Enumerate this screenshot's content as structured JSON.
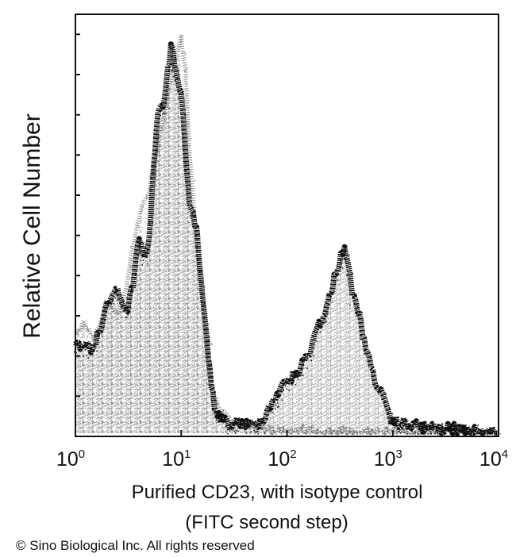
{
  "chart_data": {
    "type": "area",
    "xscale": "log",
    "xlim": [
      1,
      10000
    ],
    "x_ticks": [
      {
        "base": "10",
        "exp": "0",
        "value": 1
      },
      {
        "base": "10",
        "exp": "1",
        "value": 10
      },
      {
        "base": "10",
        "exp": "2",
        "value": 100
      },
      {
        "base": "10",
        "exp": "3",
        "value": 1000
      },
      {
        "base": "10",
        "exp": "4",
        "value": 10000
      }
    ],
    "xlabel_line1": "Purified CD23, with isotype control",
    "xlabel_line2": "(FITC second step)",
    "ylabel": "Relative Cell Number",
    "ylim": [
      0,
      100
    ],
    "grid": false,
    "legend": "none",
    "series": [
      {
        "style": "light-stipple",
        "color": "#8a8a8a",
        "x": [
          1,
          1.2,
          1.5,
          2,
          2.5,
          3,
          3.5,
          4,
          5,
          6,
          7,
          8,
          9,
          10,
          11,
          12,
          13,
          14,
          16,
          18,
          20,
          25,
          30,
          40,
          50,
          70,
          100,
          200,
          500,
          1000,
          10000
        ],
        "y": [
          25,
          28,
          24,
          33,
          30,
          36,
          48,
          55,
          62,
          72,
          82,
          90,
          96,
          100,
          92,
          72,
          60,
          48,
          35,
          22,
          10,
          5,
          3,
          2,
          1.5,
          1,
          1,
          0.8,
          0.5,
          0.3,
          0
        ]
      },
      {
        "style": "dark-stipple",
        "color": "#101010",
        "x": [
          1,
          1.5,
          2,
          2.5,
          3,
          3.5,
          4,
          4.5,
          5,
          5.5,
          6,
          7,
          8,
          9,
          10,
          12,
          14,
          16,
          18,
          20,
          22,
          25,
          30,
          35,
          40,
          50,
          60,
          70,
          80,
          100,
          130,
          160,
          200,
          230,
          260,
          300,
          350,
          400,
          450,
          500,
          600,
          700,
          800,
          900,
          1000,
          1500,
          2000,
          3000,
          5000,
          10000
        ],
        "y": [
          23,
          21,
          33,
          37,
          30,
          38,
          50,
          44,
          50,
          68,
          80,
          85,
          98,
          92,
          86,
          58,
          52,
          33,
          20,
          9,
          4,
          3,
          2,
          3,
          2,
          2,
          4,
          7,
          10,
          13,
          16,
          20,
          28,
          30,
          36,
          42,
          48,
          38,
          32,
          28,
          18,
          13,
          9,
          5,
          3,
          2,
          1.5,
          1,
          1,
          0
        ]
      }
    ]
  },
  "copyright": "© Sino Biological Inc. All rights reserved"
}
